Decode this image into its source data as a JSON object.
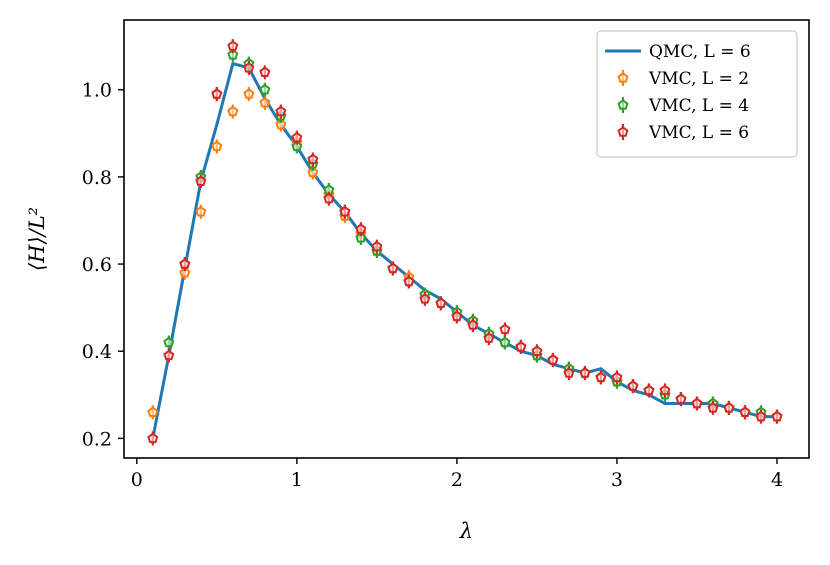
{
  "chart_data": {
    "type": "line",
    "xlabel": "λ",
    "ylabel": "⟨H⟩/L²",
    "xlim": [
      -0.08,
      4.2
    ],
    "ylim": [
      0.155,
      1.16
    ],
    "xticks": [
      0,
      1,
      2,
      3,
      4
    ],
    "xtick_labels": [
      "0",
      "1",
      "2",
      "3",
      "4"
    ],
    "yticks": [
      0.2,
      0.4,
      0.6,
      0.8,
      1.0
    ],
    "ytick_labels": [
      "0.2",
      "0.4",
      "0.6",
      "0.8",
      "1.0"
    ],
    "grid": false,
    "legend_position": "top-right",
    "series": [
      {
        "name": "QMC, L = 6",
        "kind": "line",
        "color": "#1f77b4",
        "x": [
          0.1,
          0.2,
          0.3,
          0.4,
          0.5,
          0.6,
          0.7,
          0.8,
          0.9,
          1.0,
          1.1,
          1.2,
          1.3,
          1.4,
          1.5,
          1.6,
          1.7,
          1.8,
          1.9,
          2.0,
          2.1,
          2.2,
          2.3,
          2.4,
          2.5,
          2.6,
          2.7,
          2.8,
          2.9,
          3.0,
          3.1,
          3.2,
          3.3,
          3.4,
          3.5,
          3.6,
          3.7,
          3.8,
          3.9,
          4.0
        ],
        "y": [
          0.2,
          0.39,
          0.59,
          0.79,
          0.92,
          1.06,
          1.05,
          0.98,
          0.92,
          0.87,
          0.81,
          0.76,
          0.72,
          0.67,
          0.63,
          0.6,
          0.57,
          0.54,
          0.52,
          0.49,
          0.46,
          0.44,
          0.42,
          0.4,
          0.39,
          0.37,
          0.36,
          0.35,
          0.36,
          0.33,
          0.31,
          0.3,
          0.28,
          0.28,
          0.28,
          0.28,
          0.27,
          0.26,
          0.25,
          0.25
        ]
      },
      {
        "name": "VMC, L = 2",
        "kind": "marker",
        "color": "#ff7f0e",
        "x": [
          0.1,
          0.3,
          0.4,
          0.5,
          0.6,
          0.7,
          0.8,
          0.9,
          1.0,
          1.1,
          1.2,
          1.3,
          1.4,
          1.5,
          1.6,
          1.7,
          1.8,
          1.9,
          2.0,
          2.1,
          2.2,
          2.3,
          2.4,
          2.5,
          2.6,
          2.7,
          2.8,
          2.9,
          3.0,
          3.1,
          3.2,
          3.3,
          3.4,
          3.5,
          3.6,
          3.7,
          3.8,
          3.9,
          4.0
        ],
        "y": [
          0.26,
          0.58,
          0.72,
          0.87,
          0.95,
          0.99,
          0.97,
          0.92,
          0.88,
          0.81,
          0.76,
          0.71,
          0.67,
          0.63,
          0.59,
          0.57,
          0.53,
          0.51,
          0.48,
          0.46,
          0.44,
          0.42,
          0.41,
          0.39,
          0.38,
          0.36,
          0.35,
          0.34,
          0.33,
          0.32,
          0.31,
          0.3,
          0.29,
          0.28,
          0.28,
          0.27,
          0.26,
          0.25,
          0.25
        ]
      },
      {
        "name": "VMC, L = 4",
        "kind": "marker",
        "color": "#2ca02c",
        "x": [
          0.2,
          0.3,
          0.4,
          0.5,
          0.6,
          0.7,
          0.8,
          0.9,
          1.0,
          1.1,
          1.2,
          1.3,
          1.4,
          1.5,
          1.6,
          1.7,
          1.8,
          1.9,
          2.0,
          2.1,
          2.2,
          2.3,
          2.4,
          2.5,
          2.6,
          2.7,
          2.8,
          2.9,
          3.0,
          3.1,
          3.2,
          3.3,
          3.4,
          3.5,
          3.6,
          3.7,
          3.8,
          3.9,
          4.0
        ],
        "y": [
          0.42,
          0.6,
          0.8,
          0.99,
          1.08,
          1.06,
          1.0,
          0.94,
          0.87,
          0.83,
          0.77,
          0.72,
          0.66,
          0.63,
          0.59,
          0.56,
          0.53,
          0.51,
          0.49,
          0.47,
          0.44,
          0.42,
          0.41,
          0.39,
          0.38,
          0.36,
          0.35,
          0.34,
          0.33,
          0.32,
          0.31,
          0.3,
          0.29,
          0.28,
          0.28,
          0.27,
          0.26,
          0.26,
          0.25
        ]
      },
      {
        "name": "VMC, L = 6",
        "kind": "marker",
        "color": "#d62728",
        "x": [
          0.1,
          0.2,
          0.3,
          0.4,
          0.5,
          0.6,
          0.7,
          0.8,
          0.9,
          1.0,
          1.1,
          1.2,
          1.3,
          1.4,
          1.5,
          1.6,
          1.7,
          1.8,
          1.9,
          2.0,
          2.1,
          2.2,
          2.3,
          2.4,
          2.5,
          2.6,
          2.7,
          2.8,
          2.9,
          3.0,
          3.1,
          3.2,
          3.3,
          3.4,
          3.5,
          3.6,
          3.7,
          3.8,
          3.9,
          4.0
        ],
        "y": [
          0.2,
          0.39,
          0.6,
          0.79,
          0.99,
          1.1,
          1.05,
          1.04,
          0.95,
          0.89,
          0.84,
          0.75,
          0.72,
          0.68,
          0.64,
          0.59,
          0.56,
          0.52,
          0.51,
          0.48,
          0.46,
          0.43,
          0.45,
          0.41,
          0.4,
          0.38,
          0.35,
          0.35,
          0.34,
          0.34,
          0.32,
          0.31,
          0.31,
          0.29,
          0.28,
          0.27,
          0.27,
          0.26,
          0.25,
          0.25
        ]
      }
    ]
  }
}
